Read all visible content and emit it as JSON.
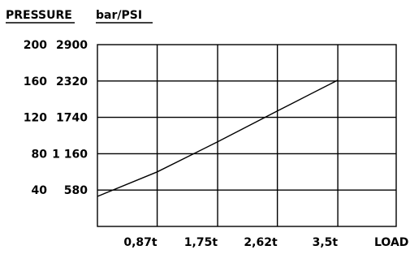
{
  "chart_data": {
    "type": "line",
    "title": "PRESSURE bar/PSI",
    "title_parts": [
      "PRESSURE",
      "bar/PSI"
    ],
    "xlabel": "LOAD",
    "x_ticks": [
      {
        "value": 0.87,
        "label": "0,87t"
      },
      {
        "value": 1.75,
        "label": "1,75t"
      },
      {
        "value": 2.62,
        "label": "2,62t"
      },
      {
        "value": 3.5,
        "label": "3,5t"
      }
    ],
    "y_ticks": [
      {
        "bar": 200,
        "psi": 2900,
        "bar_label": "200",
        "psi_label": "2900"
      },
      {
        "bar": 160,
        "psi": 2320,
        "bar_label": "160",
        "psi_label": "2320"
      },
      {
        "bar": 120,
        "psi": 1740,
        "bar_label": "120",
        "psi_label": "1740"
      },
      {
        "bar": 80,
        "psi": 1160,
        "bar_label": "80",
        "psi_label": "1 160"
      },
      {
        "bar": 40,
        "psi": 580,
        "bar_label": "40",
        "psi_label": "580"
      }
    ],
    "xlim": [
      0,
      4.35
    ],
    "ylim": [
      0,
      200
    ],
    "grid": true,
    "series": [
      {
        "x": [
          0,
          0.87,
          1.75,
          2.62,
          3.5
        ],
        "y": [
          33,
          60,
          93,
          127,
          161
        ]
      }
    ]
  }
}
